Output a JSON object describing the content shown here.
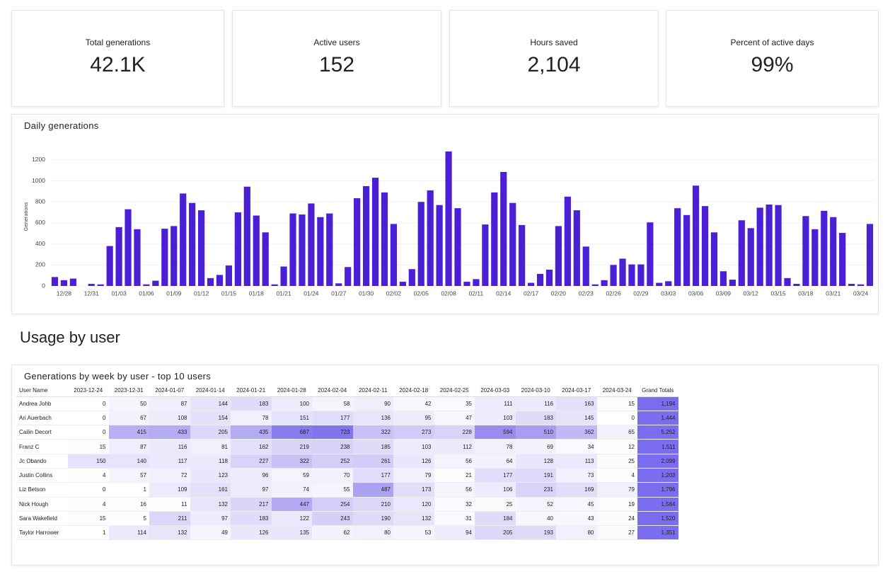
{
  "kpis": [
    {
      "label": "Total generations",
      "value": "42.1K"
    },
    {
      "label": "Active users",
      "value": "152"
    },
    {
      "label": "Hours saved",
      "value": "2,104"
    },
    {
      "label": "Percent of active days",
      "value": "99%"
    }
  ],
  "chart_data": {
    "type": "bar",
    "title": "Daily generations",
    "y_label": "Generations",
    "color": "#4a1fd6",
    "grid": true,
    "ylim": [
      0,
      1300
    ],
    "yticks": [
      0,
      200,
      400,
      600,
      800,
      1000,
      1200
    ],
    "categories": [
      null,
      "12/28",
      null,
      null,
      "12/31",
      null,
      null,
      "01/03",
      null,
      null,
      "01/06",
      null,
      null,
      "01/09",
      null,
      null,
      "01/12",
      null,
      null,
      "01/15",
      null,
      null,
      "01/18",
      null,
      null,
      "01/21",
      null,
      null,
      "01/24",
      null,
      null,
      "01/27",
      null,
      null,
      "01/30",
      null,
      null,
      "02/02",
      null,
      null,
      "02/05",
      null,
      null,
      "02/08",
      null,
      null,
      "02/11",
      null,
      null,
      "02/14",
      null,
      null,
      "02/17",
      null,
      null,
      "02/20",
      null,
      null,
      "02/23",
      null,
      null,
      "02/26",
      null,
      null,
      "02/29",
      null,
      null,
      "03/03",
      null,
      null,
      "03/06",
      null,
      null,
      "03/09",
      null,
      null,
      "03/12",
      null,
      null,
      "03/15",
      null,
      null,
      "03/18",
      null,
      null,
      "03/21",
      null,
      null,
      "03/24",
      null
    ],
    "values": [
      85,
      55,
      70,
      0,
      20,
      15,
      380,
      560,
      730,
      540,
      15,
      50,
      545,
      570,
      880,
      790,
      720,
      75,
      105,
      195,
      700,
      945,
      670,
      510,
      15,
      185,
      690,
      680,
      785,
      655,
      690,
      25,
      180,
      835,
      950,
      1030,
      890,
      590,
      40,
      160,
      800,
      910,
      770,
      1280,
      740,
      40,
      65,
      585,
      890,
      1085,
      790,
      580,
      30,
      115,
      155,
      570,
      850,
      720,
      375,
      15,
      55,
      200,
      260,
      205,
      205,
      605,
      30,
      45,
      740,
      675,
      955,
      760,
      510,
      140,
      60,
      625,
      550,
      745,
      775,
      770,
      75,
      20,
      665,
      540,
      715,
      655,
      505,
      20,
      15,
      590
    ]
  },
  "section": {
    "title": "Usage by user"
  },
  "table": {
    "title": "Generations by week by user - top 10 users",
    "heat_color": "#6c5ce7",
    "total_color": "#7b6cf0",
    "columns": [
      "User Name",
      "2023-12-24",
      "2023-12-31",
      "2024-01-07",
      "2024-01-14",
      "2024-01-21",
      "2024-01-28",
      "2024-02-04",
      "2024-02-11",
      "2024-02-18",
      "2024-02-25",
      "2024-03-03",
      "2024-03-10",
      "2024-03-17",
      "2024-03-24",
      "Grand Totals"
    ],
    "rows": [
      [
        "Andrea Johb",
        0,
        50,
        87,
        144,
        183,
        100,
        58,
        90,
        42,
        35,
        111,
        116,
        163,
        15,
        "1,194"
      ],
      [
        "Ari Auerbach",
        0,
        67,
        108,
        154,
        78,
        151,
        177,
        136,
        95,
        47,
        103,
        183,
        145,
        0,
        "1,444"
      ],
      [
        "Cailin Decort",
        0,
        415,
        433,
        205,
        435,
        687,
        723,
        322,
        273,
        228,
        594,
        510,
        362,
        65,
        "5,252"
      ],
      [
        "Franz C",
        15,
        87,
        116,
        81,
        162,
        219,
        238,
        185,
        103,
        112,
        78,
        69,
        34,
        12,
        "1,511"
      ],
      [
        "Jc Obando",
        150,
        140,
        117,
        118,
        227,
        322,
        252,
        261,
        126,
        56,
        64,
        128,
        113,
        25,
        "2,099"
      ],
      [
        "Justin Collins",
        4,
        57,
        72,
        123,
        96,
        59,
        70,
        177,
        79,
        21,
        177,
        191,
        73,
        4,
        "1,203"
      ],
      [
        "Liz Betson",
        0,
        1,
        109,
        161,
        97,
        74,
        55,
        487,
        173,
        56,
        106,
        231,
        169,
        79,
        "1,796"
      ],
      [
        "Nick Hough",
        4,
        16,
        11,
        132,
        217,
        447,
        254,
        210,
        120,
        32,
        25,
        52,
        45,
        19,
        "1,584"
      ],
      [
        "Sara Wakefield",
        15,
        5,
        211,
        97,
        183,
        122,
        243,
        190,
        132,
        31,
        184,
        40,
        43,
        24,
        "1,520"
      ],
      [
        "Taylor Harrower",
        1,
        114,
        132,
        49,
        126,
        135,
        62,
        80,
        53,
        94,
        205,
        193,
        80,
        27,
        "1,351"
      ]
    ]
  }
}
